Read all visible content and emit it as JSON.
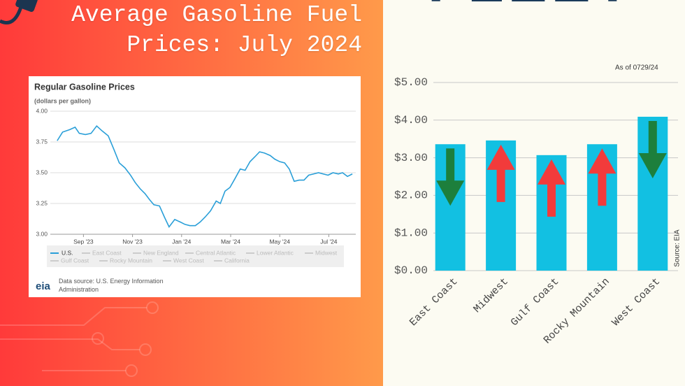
{
  "logo": "FLEET",
  "title": "Average Gasoline Fuel Prices: July 2024",
  "chart_data": [
    {
      "type": "line",
      "title": "Regular Gasoline Prices",
      "subtitle": "(dollars per gallon)",
      "x": [
        7.93,
        8.15,
        8.44,
        8.66,
        8.83,
        9.08,
        9.31,
        9.54,
        9.76,
        10.01,
        10.24,
        10.46,
        10.69,
        10.92,
        11.11,
        11.31,
        11.51,
        11.7,
        11.87,
        12.1,
        12.3,
        12.49,
        12.72,
        12.94,
        13.14,
        13.34,
        13.56,
        13.76,
        13.96,
        14.18,
        14.41,
        14.58,
        14.77,
        14.97,
        15.17,
        15.39,
        15.59,
        15.79,
        15.99,
        16.18,
        16.38,
        16.61,
        16.8,
        17.0,
        17.2,
        17.39,
        17.59,
        17.79,
        17.99,
        18.18,
        18.38,
        18.58,
        18.77,
        18.97,
        19.17,
        19.39,
        19.56,
        19.76,
        19.96
      ],
      "series": [
        {
          "name": "U.S.",
          "color": "#2a9fd8",
          "values": [
            3.76,
            3.83,
            3.85,
            3.87,
            3.82,
            3.81,
            3.82,
            3.88,
            3.84,
            3.8,
            3.69,
            3.58,
            3.54,
            3.48,
            3.42,
            3.37,
            3.33,
            3.28,
            3.24,
            3.23,
            3.14,
            3.06,
            3.12,
            3.1,
            3.08,
            3.07,
            3.07,
            3.1,
            3.14,
            3.19,
            3.27,
            3.25,
            3.35,
            3.38,
            3.45,
            3.53,
            3.52,
            3.59,
            3.63,
            3.67,
            3.66,
            3.64,
            3.61,
            3.59,
            3.58,
            3.53,
            3.43,
            3.44,
            3.44,
            3.48,
            3.49,
            3.5,
            3.49,
            3.48,
            3.5,
            3.49,
            3.5,
            3.47,
            3.49
          ]
        }
      ],
      "legend_inactive": [
        "East Coast",
        "New England",
        "Central Atlantic",
        "Lower Atlantic",
        "Midwest",
        "Gulf Coast",
        "Rocky Mountain",
        "West Coast",
        "California"
      ],
      "xlim": [
        7.65,
        20.1
      ],
      "xticks": [
        {
          "value": 9,
          "label": "Sep '23"
        },
        {
          "value": 11,
          "label": "Nov '23"
        },
        {
          "value": 13,
          "label": "Jan '24"
        },
        {
          "value": 15,
          "label": "Mar '24"
        },
        {
          "value": 17,
          "label": "May '24"
        },
        {
          "value": 19,
          "label": "Jul '24"
        }
      ],
      "ylim": [
        3,
        4
      ],
      "yticks": [
        {
          "value": 3,
          "label": "3.00"
        },
        {
          "value": 3.25,
          "label": "3.25"
        },
        {
          "value": 3.5,
          "label": "3.50"
        },
        {
          "value": 3.75,
          "label": "3.75"
        },
        {
          "value": 4,
          "label": "4.00"
        }
      ],
      "grid": true,
      "source_logo": "eia",
      "source": "Data source: U.S. Energy Information Administration"
    },
    {
      "type": "bar",
      "annotation": "As of 0729/24",
      "source": "Source: EIA",
      "categories": [
        "East Coast",
        "Midwest",
        "Gulf Coast",
        "Rocky Mountain",
        "West Coast"
      ],
      "values": [
        3.36,
        3.46,
        3.07,
        3.36,
        4.09
      ],
      "color": "#12c0e2",
      "trend": [
        "down",
        "up",
        "up",
        "up",
        "down"
      ],
      "trend_colors": {
        "down": "#1d7f3c",
        "up": "#f23b3b"
      },
      "ylim": [
        0,
        5
      ],
      "yticks": [
        {
          "value": 0,
          "label": "$0.00"
        },
        {
          "value": 1,
          "label": "$1.00"
        },
        {
          "value": 2,
          "label": "$2.00"
        },
        {
          "value": 3,
          "label": "$3.00"
        },
        {
          "value": 4,
          "label": "$4.00"
        },
        {
          "value": 5,
          "label": "$5.00"
        }
      ],
      "grid": true
    }
  ]
}
